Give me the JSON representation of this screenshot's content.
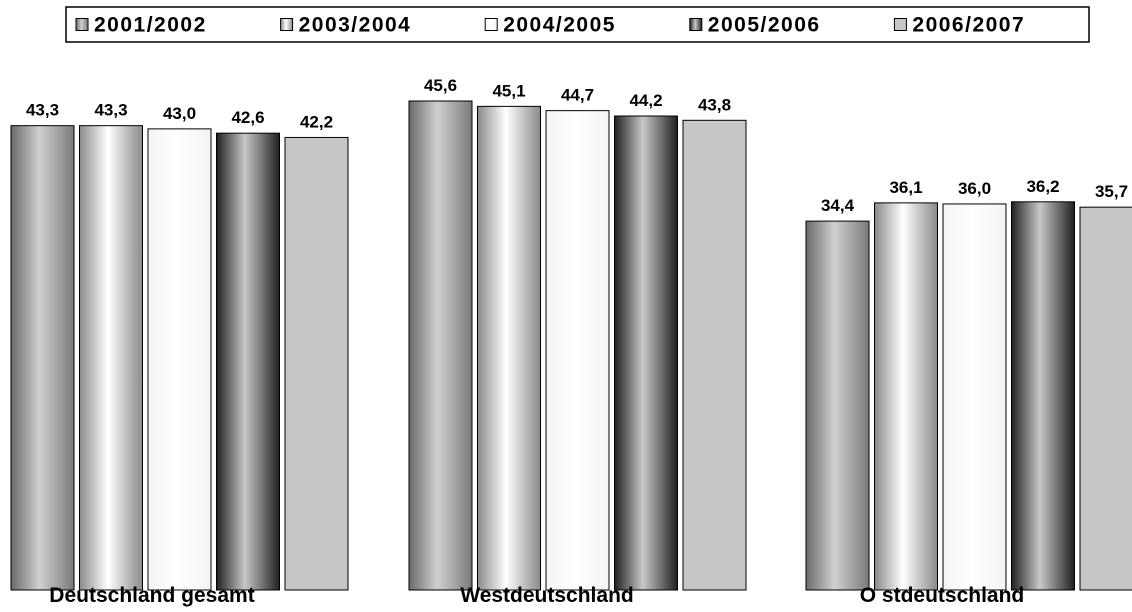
{
  "chart_data": {
    "type": "bar",
    "categories": [
      "Deutschland gesamt",
      "Westdeutschland",
      "O stdeutschland"
    ],
    "series": [
      {
        "name": "2001/2002",
        "values": [
          43.3,
          45.6,
          34.4
        ],
        "value_labels": [
          "43,3",
          "45,6",
          "34,4"
        ],
        "fill": "cylinder-gray",
        "colors": [
          "#6a6a6a",
          "#d0d0d0",
          "#7a7a7a"
        ]
      },
      {
        "name": "2003/2004",
        "values": [
          43.3,
          45.1,
          36.1
        ],
        "value_labels": [
          "43,3",
          "45,1",
          "36,1"
        ],
        "fill": "cylinder-light",
        "colors": [
          "#8a8a8a",
          "#ffffff",
          "#8a8a8a"
        ]
      },
      {
        "name": "2004/2005",
        "values": [
          43.0,
          44.7,
          36.0
        ],
        "value_labels": [
          "43,0",
          "44,7",
          "36,0"
        ],
        "fill": "white",
        "colors": [
          "#f4f4f4",
          "#ffffff",
          "#f4f4f4"
        ]
      },
      {
        "name": "2005/2006",
        "values": [
          42.6,
          44.2,
          36.2
        ],
        "value_labels": [
          "42,6",
          "44,2",
          "36,2"
        ],
        "fill": "cylinder-dark",
        "colors": [
          "#202020",
          "#c8c8c8",
          "#202020"
        ]
      },
      {
        "name": "2006/2007",
        "values": [
          42.2,
          43.8,
          35.7
        ],
        "value_labels": [
          "42,2",
          "43,8",
          "35,7"
        ],
        "fill": "light-gray",
        "colors": [
          "#c6c6c6",
          "#c6c6c6",
          "#c6c6c6"
        ]
      }
    ],
    "legend_position": "top",
    "grid": false,
    "ylim": [
      0,
      45.6
    ]
  }
}
